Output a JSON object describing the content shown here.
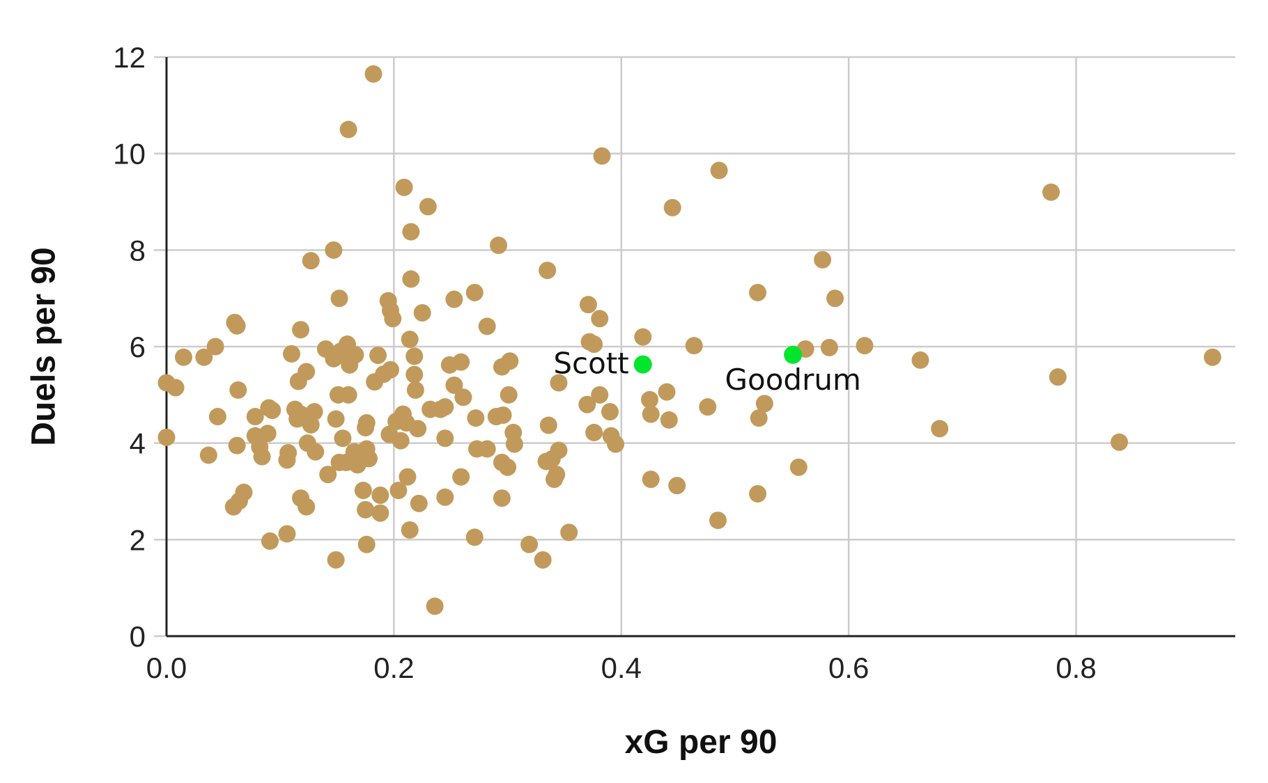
{
  "chart_data": {
    "type": "scatter",
    "title": "",
    "xlabel": "xG per 90",
    "ylabel": "Duels per 90",
    "xlim": [
      0,
      0.94
    ],
    "ylim": [
      0,
      12
    ],
    "x_ticks": [
      "0.0",
      "0.2",
      "0.4",
      "0.6",
      "0.8"
    ],
    "x_tick_values": [
      0,
      0.2,
      0.4,
      0.6,
      0.8
    ],
    "y_ticks": [
      "0",
      "2",
      "4",
      "6",
      "8",
      "10",
      "12"
    ],
    "y_tick_values": [
      0,
      2,
      4,
      6,
      8,
      10,
      12
    ],
    "grid": true,
    "colors": {
      "points": "#c19a5b",
      "highlight": "#00e62e",
      "grid": "#cccccc",
      "axis": "#222222"
    },
    "series": [
      {
        "points": [
          [
            0.182,
            11.65
          ],
          [
            0.16,
            10.5
          ],
          [
            0.383,
            9.95
          ],
          [
            0.486,
            9.65
          ],
          [
            0.209,
            9.3
          ],
          [
            0.23,
            8.9
          ],
          [
            0.445,
            8.88
          ],
          [
            0.778,
            9.2
          ],
          [
            0.215,
            8.38
          ],
          [
            0.292,
            8.1
          ],
          [
            0.147,
            8.0
          ],
          [
            0.127,
            7.78
          ],
          [
            0.335,
            7.58
          ],
          [
            0.577,
            7.8
          ],
          [
            0.215,
            7.4
          ],
          [
            0.52,
            7.12
          ],
          [
            0.588,
            7.0
          ],
          [
            0.271,
            7.12
          ],
          [
            0.195,
            6.95
          ],
          [
            0.253,
            6.98
          ],
          [
            0.152,
            7.0
          ],
          [
            0.371,
            6.87
          ],
          [
            0.197,
            6.75
          ],
          [
            0.225,
            6.7
          ],
          [
            0.381,
            6.58
          ],
          [
            0.199,
            6.58
          ],
          [
            0.06,
            6.5
          ],
          [
            0.062,
            6.43
          ],
          [
            0.282,
            6.42
          ],
          [
            0.118,
            6.35
          ],
          [
            0.419,
            6.2
          ],
          [
            0.214,
            6.15
          ],
          [
            0.372,
            6.1
          ],
          [
            0.376,
            6.05
          ],
          [
            0.159,
            6.05
          ],
          [
            0.043,
            6.0
          ],
          [
            0.464,
            6.02
          ],
          [
            0.614,
            6.02
          ],
          [
            0.583,
            5.98
          ],
          [
            0.562,
            5.95
          ],
          [
            0.14,
            5.95
          ],
          [
            0.153,
            5.9
          ],
          [
            0.166,
            5.83
          ],
          [
            0.186,
            5.82
          ],
          [
            0.11,
            5.85
          ],
          [
            0.218,
            5.8
          ],
          [
            0.161,
            5.62
          ],
          [
            0.147,
            5.75
          ],
          [
            0.015,
            5.78
          ],
          [
            0.033,
            5.78
          ],
          [
            0.663,
            5.72
          ],
          [
            0.259,
            5.68
          ],
          [
            0.302,
            5.7
          ],
          [
            0.249,
            5.62
          ],
          [
            0.295,
            5.58
          ],
          [
            0.197,
            5.52
          ],
          [
            0.123,
            5.48
          ],
          [
            0.92,
            5.78
          ],
          [
            0.191,
            5.43
          ],
          [
            0.218,
            5.42
          ],
          [
            0.784,
            5.37
          ],
          [
            0.183,
            5.27
          ],
          [
            0.116,
            5.28
          ],
          [
            0.0,
            5.25
          ],
          [
            0.008,
            5.15
          ],
          [
            0.253,
            5.2
          ],
          [
            0.345,
            5.25
          ],
          [
            0.063,
            5.1
          ],
          [
            0.219,
            5.1
          ],
          [
            0.44,
            5.06
          ],
          [
            0.151,
            5.0
          ],
          [
            0.16,
            5.0
          ],
          [
            0.301,
            5.0
          ],
          [
            0.381,
            5.0
          ],
          [
            0.261,
            4.95
          ],
          [
            0.425,
            4.9
          ],
          [
            0.37,
            4.8
          ],
          [
            0.526,
            4.82
          ],
          [
            0.476,
            4.75
          ],
          [
            0.232,
            4.7
          ],
          [
            0.241,
            4.7
          ],
          [
            0.245,
            4.75
          ],
          [
            0.09,
            4.73
          ],
          [
            0.113,
            4.7
          ],
          [
            0.093,
            4.68
          ],
          [
            0.13,
            4.65
          ],
          [
            0.118,
            4.6
          ],
          [
            0.39,
            4.65
          ],
          [
            0.426,
            4.6
          ],
          [
            0.208,
            4.6
          ],
          [
            0.078,
            4.55
          ],
          [
            0.045,
            4.55
          ],
          [
            0.115,
            4.5
          ],
          [
            0.149,
            4.5
          ],
          [
            0.272,
            4.52
          ],
          [
            0.29,
            4.55
          ],
          [
            0.296,
            4.58
          ],
          [
            0.521,
            4.52
          ],
          [
            0.442,
            4.48
          ],
          [
            0.202,
            4.45
          ],
          [
            0.211,
            4.42
          ],
          [
            0.176,
            4.42
          ],
          [
            0.127,
            4.38
          ],
          [
            0.175,
            4.32
          ],
          [
            0.336,
            4.37
          ],
          [
            0.221,
            4.3
          ],
          [
            0.68,
            4.3
          ],
          [
            0.376,
            4.22
          ],
          [
            0.305,
            4.22
          ],
          [
            0.089,
            4.2
          ],
          [
            0.196,
            4.18
          ],
          [
            0.078,
            4.15
          ],
          [
            0.0,
            4.12
          ],
          [
            0.155,
            4.1
          ],
          [
            0.245,
            4.1
          ],
          [
            0.391,
            4.15
          ],
          [
            0.206,
            4.05
          ],
          [
            0.124,
            4.0
          ],
          [
            0.306,
            3.98
          ],
          [
            0.395,
            3.98
          ],
          [
            0.838,
            4.02
          ],
          [
            0.062,
            3.95
          ],
          [
            0.082,
            3.92
          ],
          [
            0.176,
            3.88
          ],
          [
            0.273,
            3.88
          ],
          [
            0.282,
            3.88
          ],
          [
            0.345,
            3.85
          ],
          [
            0.131,
            3.82
          ],
          [
            0.107,
            3.8
          ],
          [
            0.165,
            3.82
          ],
          [
            0.037,
            3.75
          ],
          [
            0.084,
            3.72
          ],
          [
            0.178,
            3.68
          ],
          [
            0.106,
            3.65
          ],
          [
            0.339,
            3.67
          ],
          [
            0.334,
            3.62
          ],
          [
            0.158,
            3.6
          ],
          [
            0.152,
            3.6
          ],
          [
            0.295,
            3.6
          ],
          [
            0.3,
            3.5
          ],
          [
            0.556,
            3.5
          ],
          [
            0.168,
            3.55
          ],
          [
            0.142,
            3.35
          ],
          [
            0.343,
            3.35
          ],
          [
            0.212,
            3.3
          ],
          [
            0.259,
            3.3
          ],
          [
            0.426,
            3.25
          ],
          [
            0.341,
            3.25
          ],
          [
            0.449,
            3.12
          ],
          [
            0.173,
            3.02
          ],
          [
            0.204,
            3.02
          ],
          [
            0.068,
            2.98
          ],
          [
            0.188,
            2.92
          ],
          [
            0.52,
            2.95
          ],
          [
            0.245,
            2.88
          ],
          [
            0.118,
            2.86
          ],
          [
            0.295,
            2.86
          ],
          [
            0.064,
            2.8
          ],
          [
            0.222,
            2.75
          ],
          [
            0.123,
            2.68
          ],
          [
            0.059,
            2.68
          ],
          [
            0.175,
            2.62
          ],
          [
            0.188,
            2.55
          ],
          [
            0.485,
            2.4
          ],
          [
            0.214,
            2.2
          ],
          [
            0.354,
            2.15
          ],
          [
            0.106,
            2.12
          ],
          [
            0.271,
            2.05
          ],
          [
            0.091,
            1.97
          ],
          [
            0.319,
            1.9
          ],
          [
            0.176,
            1.9
          ],
          [
            0.149,
            1.58
          ],
          [
            0.331,
            1.58
          ],
          [
            0.236,
            0.62
          ]
        ]
      }
    ],
    "highlighted": [
      {
        "label": "Scott",
        "x": 0.419,
        "y": 5.63
      },
      {
        "label": "Goodrum",
        "x": 0.551,
        "y": 5.83
      }
    ]
  }
}
